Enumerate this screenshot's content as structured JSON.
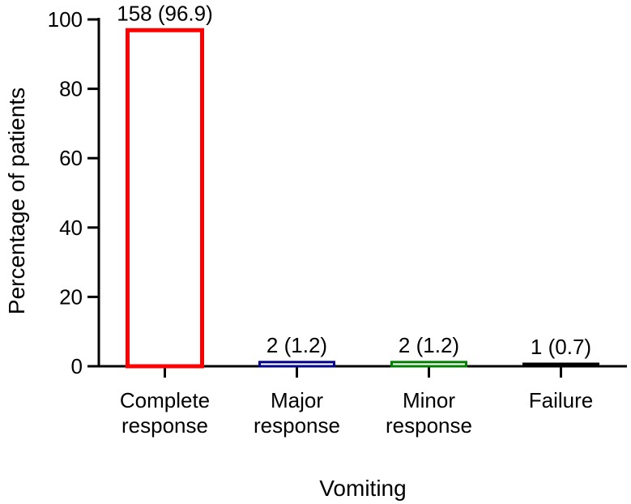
{
  "chart_data": {
    "type": "bar",
    "xlabel": "Vomiting",
    "ylabel": "Percentage of patients",
    "ylim": [
      0,
      100
    ],
    "yticks": [
      0,
      20,
      40,
      60,
      80,
      100
    ],
    "grid": false,
    "legend": "none",
    "categories": [
      [
        "Complete",
        "response"
      ],
      [
        "Major",
        "response"
      ],
      [
        "Minor",
        "response"
      ],
      [
        "Failure"
      ]
    ],
    "values": [
      96.9,
      1.2,
      1.2,
      0.7
    ],
    "data_labels": [
      "158 (96.9)",
      "2 (1.2)",
      "2 (1.2)",
      "1 (0.7)"
    ],
    "bar_colors": [
      "#ff0000",
      "#00008b",
      "#008000",
      "#000000"
    ],
    "bar_fill": "#ffffff"
  }
}
